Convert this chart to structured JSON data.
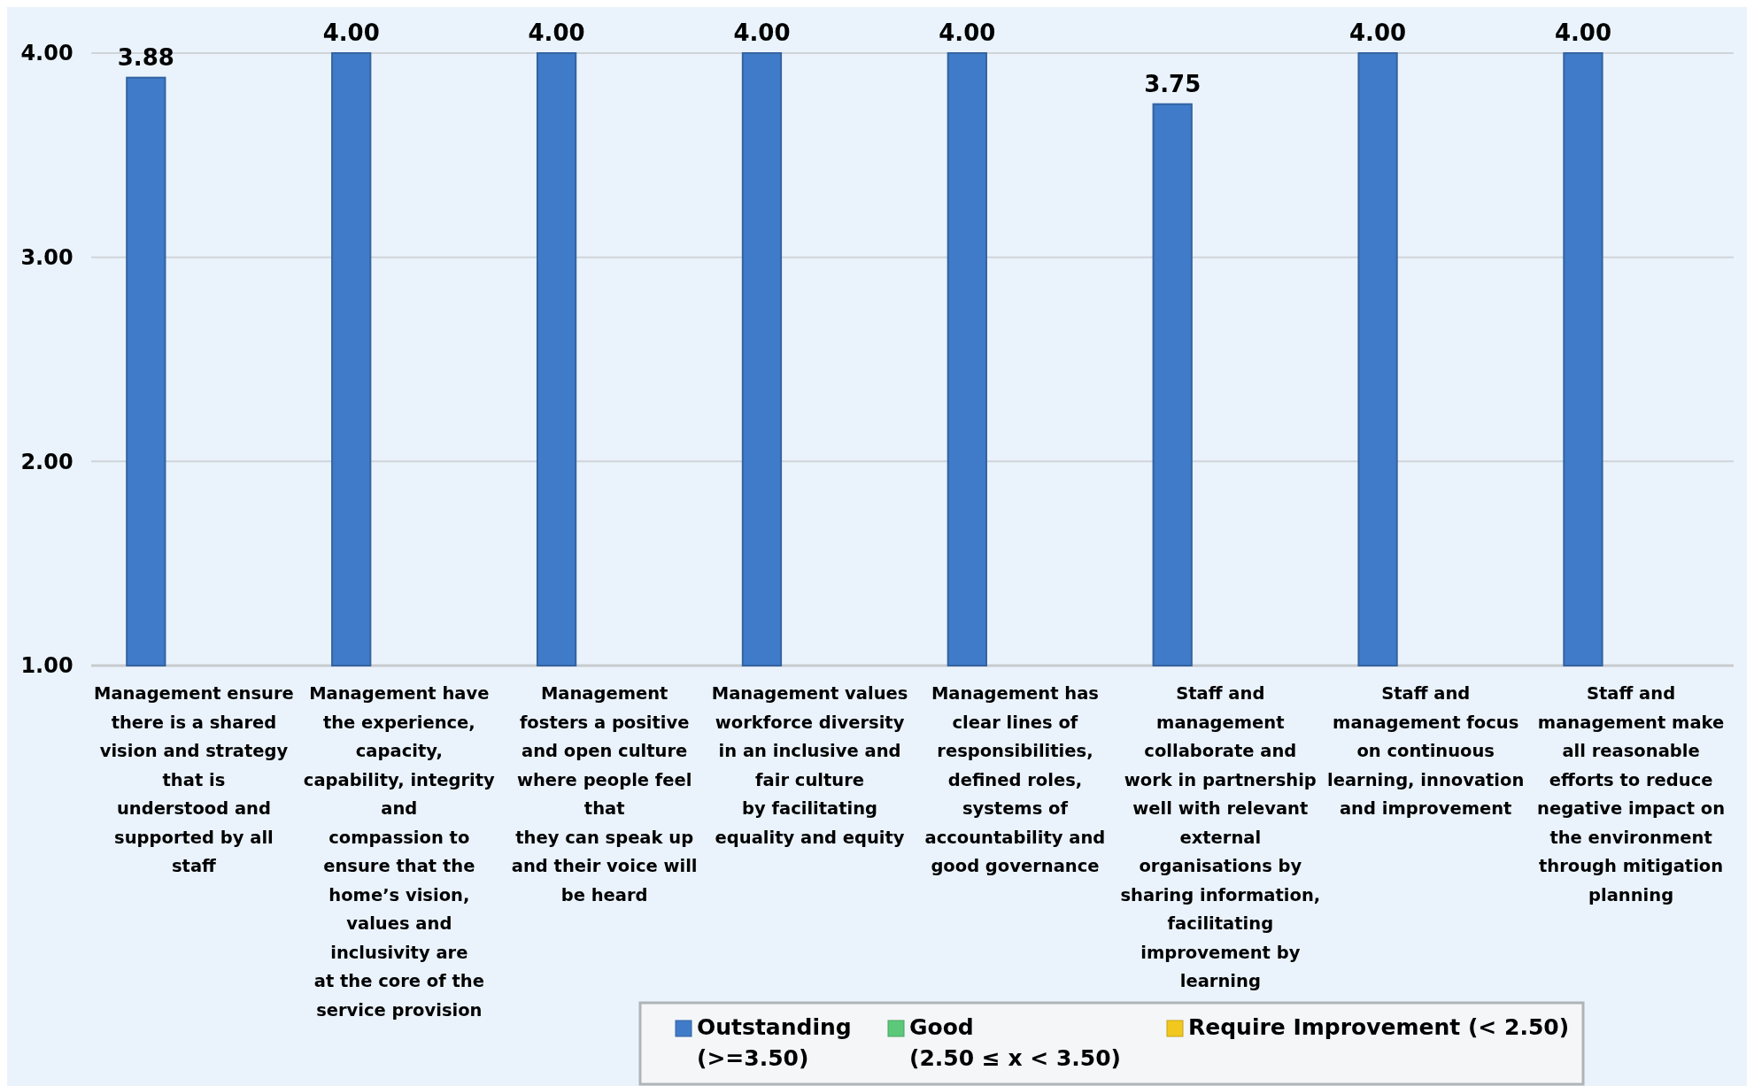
{
  "chart_data": {
    "type": "bar",
    "categories": [
      "Management ensure\nthere is a shared\nvision and strategy\nthat is\nunderstood and\nsupported by all\nstaff",
      "Management have\nthe experience,\ncapacity,\ncapability, integrity\nand\ncompassion to\nensure that the\nhome’s vision,\nvalues and\ninclusivity are\nat the core of the\nservice provision",
      "Management\nfosters a positive\nand open culture\nwhere people feel\nthat\nthey can speak up\nand their voice will\nbe heard",
      "Management values\nworkforce diversity\nin an inclusive and\nfair culture\nby facilitating\nequality and equity",
      "Management has\nclear lines of\nresponsibilities,\ndefined roles,\nsystems of\naccountability and\ngood governance",
      "Staff and\nmanagement\ncollaborate and\nwork in partnership\nwell with relevant\nexternal\norganisations by\nsharing information,\nfacilitating\nimprovement by\nlearning",
      "Staff and\nmanagement focus\non continuous\nlearning, innovation\nand improvement",
      "Staff and\nmanagement make\nall reasonable\nefforts to reduce\nnegative impact on\nthe environment\nthrough mitigation\nplanning"
    ],
    "series": [
      {
        "name": "Outstanding\n(>=3.50)",
        "color": "#3f7bc8",
        "values": [
          3.88,
          4,
          4,
          4,
          4,
          3.75,
          4,
          4
        ],
        "value_labels": [
          "3.88",
          "4.00",
          "4.00",
          "4.00",
          "4.00",
          "3.75",
          "4.00",
          "4.00"
        ]
      },
      {
        "name": "Good\n(2.50 ≤ x < 3.50)",
        "color": "#5cc87a",
        "values": [
          1,
          1,
          1,
          1,
          1,
          1,
          1,
          1
        ]
      },
      {
        "name": "Require Improvement (< 2.50)",
        "color": "#f2c81e",
        "values": [
          1,
          1,
          1,
          1,
          1,
          1,
          1,
          1
        ]
      }
    ],
    "ylim": [
      1,
      4
    ],
    "yticks": [
      {
        "value": 1,
        "label": "1.00"
      },
      {
        "value": 2,
        "label": "2.00"
      },
      {
        "value": 3,
        "label": "3.00"
      },
      {
        "value": 4,
        "label": "4.00"
      }
    ],
    "grid": "y",
    "legend": "bottom"
  }
}
